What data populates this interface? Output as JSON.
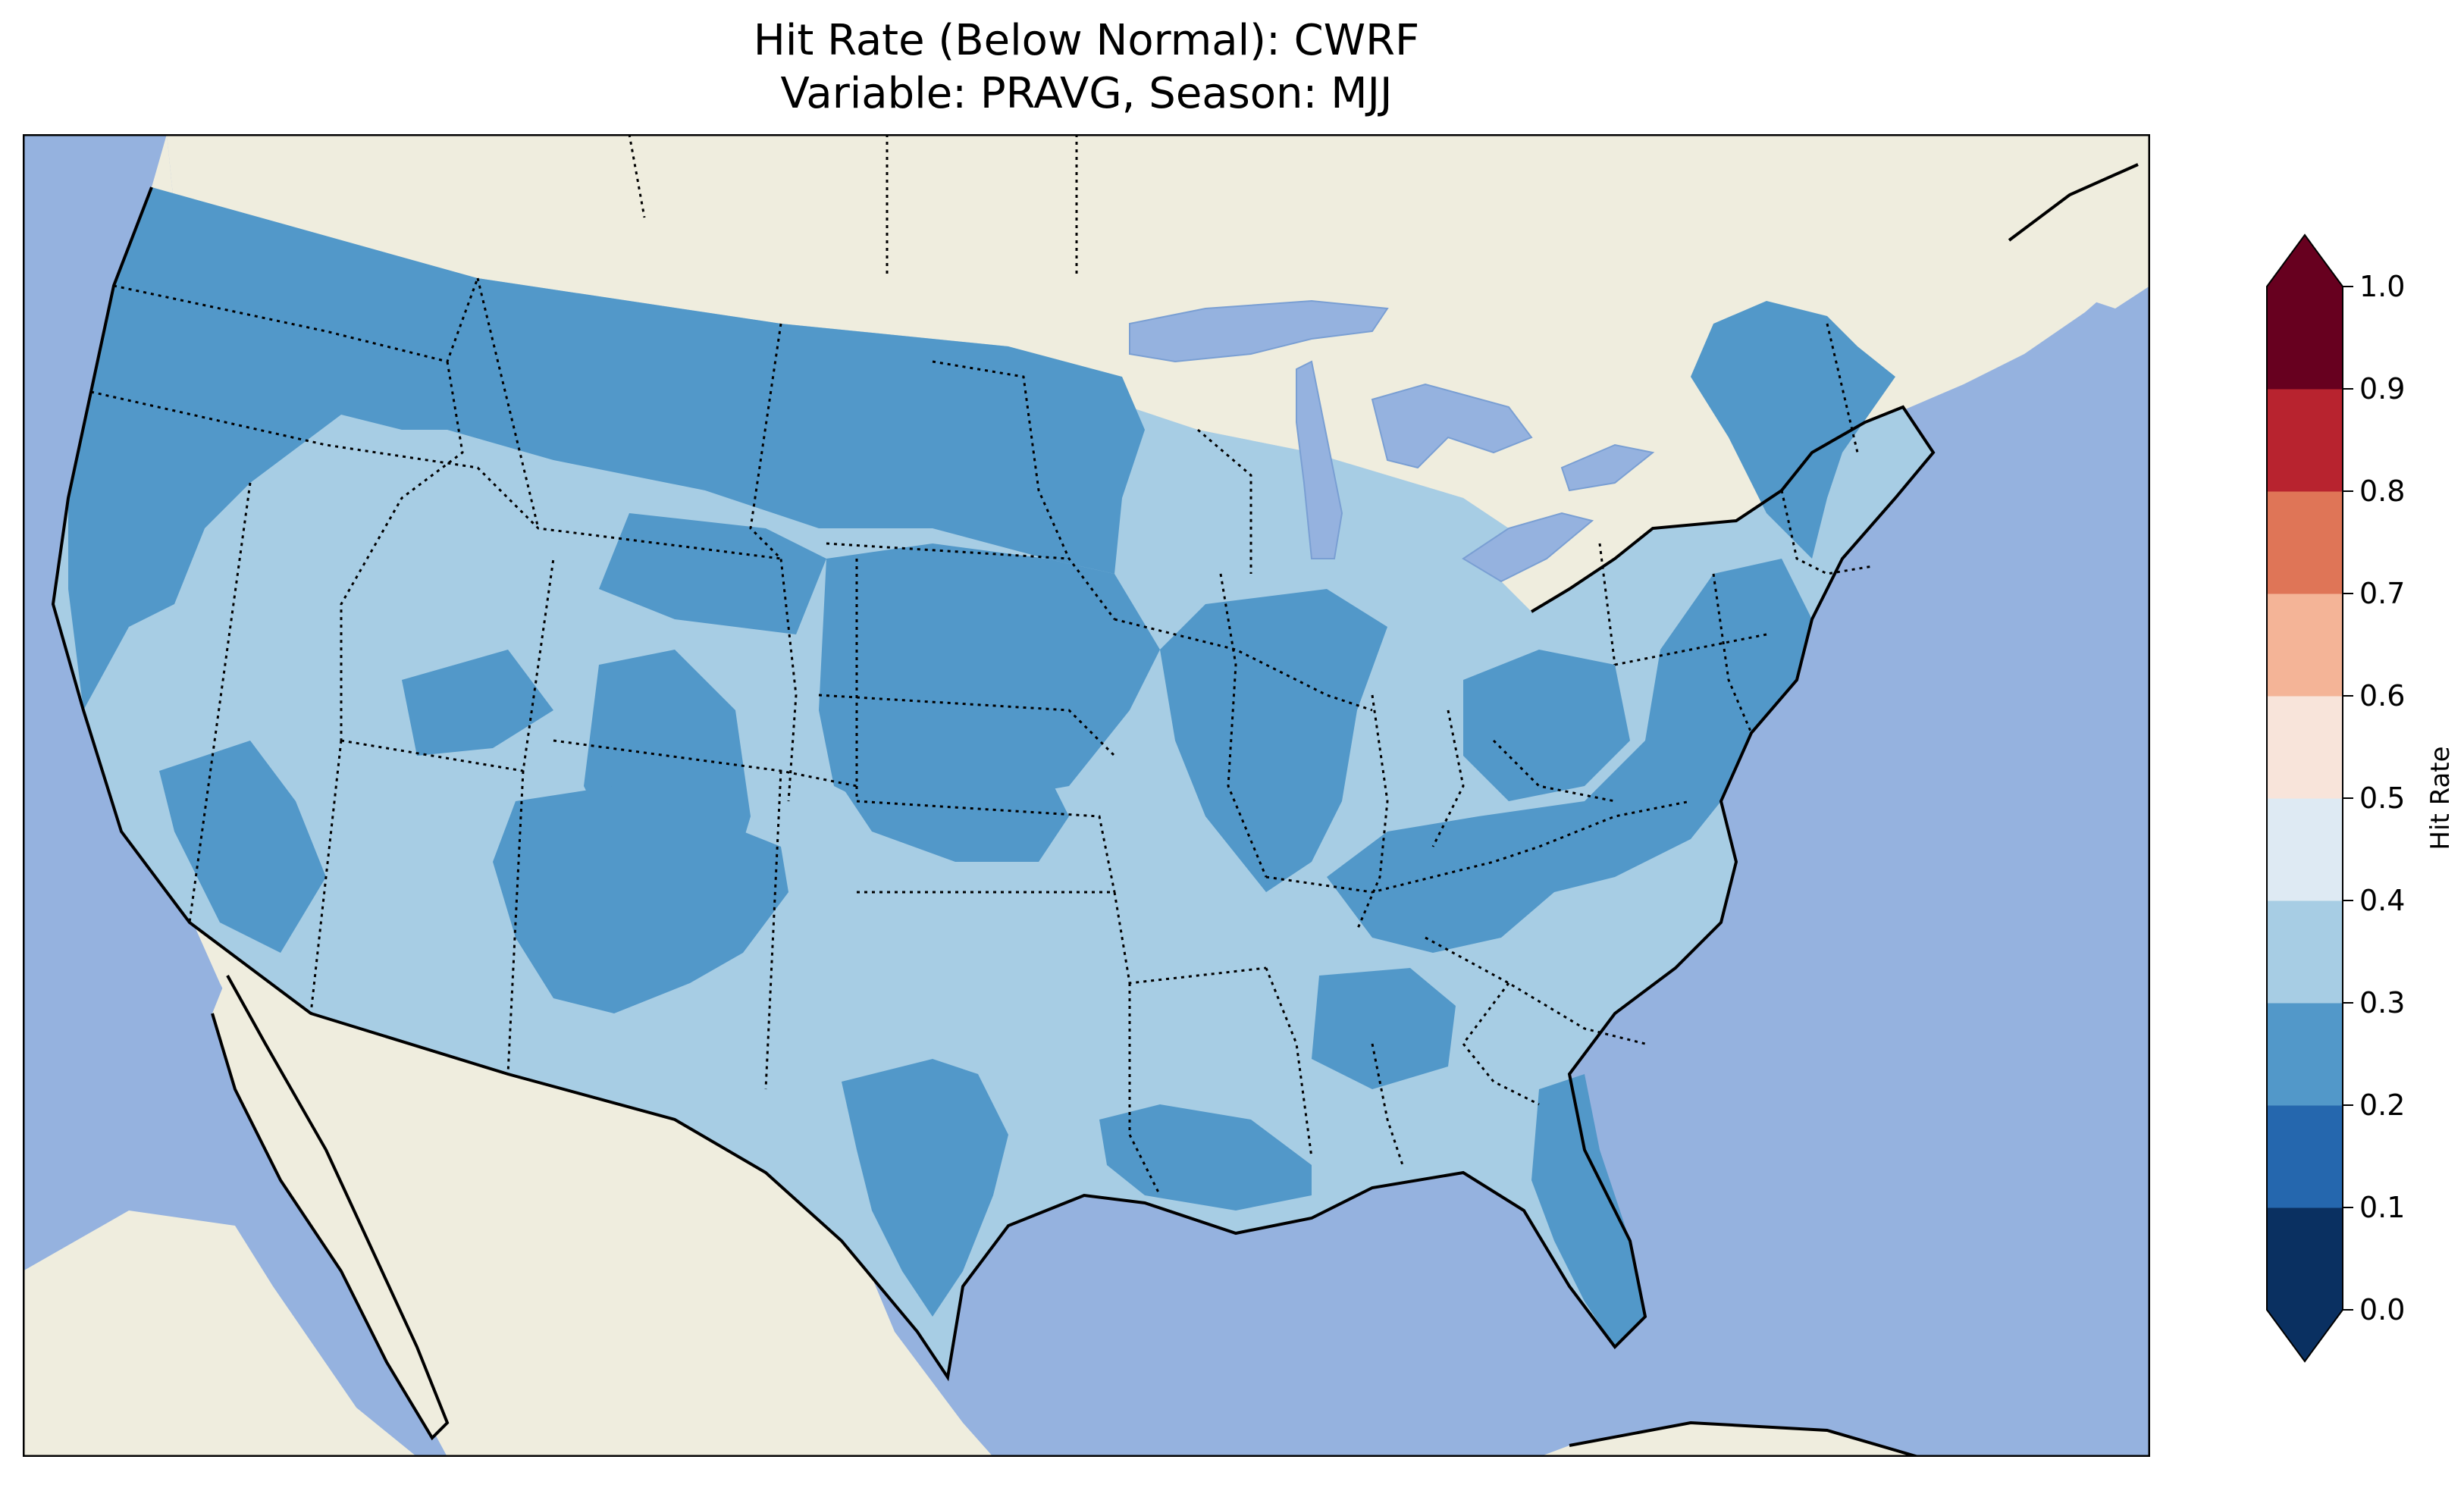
{
  "title": {
    "line1": "Hit Rate (Below Normal): CWRF",
    "line2": "Variable: PRAVG, Season: MJJ"
  },
  "map": {
    "projection": "Lambert conformal, CONUS",
    "ocean_color": "#95b2df",
    "land_color": "#efedde",
    "lake_color": "#95b2df",
    "field_color_0.2_0.3": "#5298c9",
    "field_color_0.3_0.4": "#a7cde4",
    "field_color_0.1_0.2": "#2567ae"
  },
  "colorbar": {
    "label": "Hit Rate",
    "extend": "both",
    "ticks": [
      "0.0",
      "0.1",
      "0.2",
      "0.3",
      "0.4",
      "0.5",
      "0.6",
      "0.7",
      "0.8",
      "0.9",
      "1.0"
    ],
    "colors": [
      "#0a3061",
      "#2567ae",
      "#5298c9",
      "#a7cde4",
      "#deeaf3",
      "#f8e4da",
      "#f4b497",
      "#df7557",
      "#b8232f",
      "#67001f"
    ],
    "under_color": "#0a3061",
    "over_color": "#67001f"
  }
}
